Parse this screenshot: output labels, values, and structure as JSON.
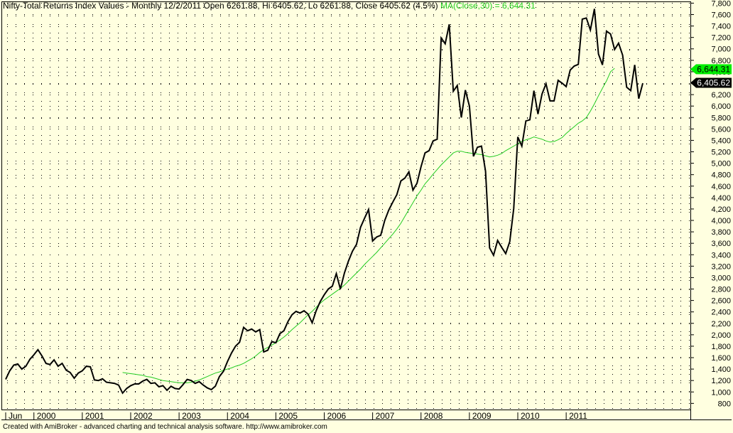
{
  "header": {
    "prefix": "Nifty-Total Returns Index Values - Monthly 12/2/2011 Open 6261.88, Hi 6405.62, Lo 6261.88, Close 6405.62 (4.5%)",
    "ma_text": "MA(Close,30) = 6,644.31"
  },
  "footer": "Created with AmiBroker - advanced charting and technical analysis software. http://www.amibroker.com",
  "colors": {
    "background": "#ffffe0",
    "price_line": "#000000",
    "ma_line": "#22cc22",
    "ma_label_bg": "#00ee00",
    "close_label_bg": "#000000",
    "close_label_text": "#ffffff"
  },
  "chart_data": {
    "type": "line",
    "title": "",
    "xlabel": "",
    "ylabel": "",
    "x_labels": [
      "Jun",
      "2000",
      "2001",
      "2002",
      "2003",
      "2004",
      "2005",
      "2006",
      "2007",
      "2008",
      "2009",
      "2010",
      "2011"
    ],
    "y_ticks": [
      800,
      1000,
      1200,
      1400,
      1600,
      1800,
      2000,
      2200,
      2400,
      2600,
      2800,
      3000,
      3200,
      3400,
      3600,
      3800,
      4000,
      4200,
      4400,
      4600,
      4800,
      5000,
      5200,
      5400,
      5600,
      5800,
      6000,
      6200,
      6400,
      6600,
      6800,
      7000,
      7200,
      7400,
      7600,
      7800
    ],
    "ylim": [
      680,
      7830
    ],
    "grid": "dotted",
    "value_labels": {
      "ma": "6,644.31",
      "close": "6,405.62"
    },
    "series": [
      {
        "role": "price",
        "values": [
          1220,
          1370,
          1470,
          1490,
          1400,
          1450,
          1570,
          1650,
          1740,
          1630,
          1500,
          1480,
          1560,
          1450,
          1500,
          1380,
          1340,
          1240,
          1330,
          1370,
          1450,
          1440,
          1210,
          1200,
          1230,
          1170,
          1160,
          1150,
          1120,
          980,
          1060,
          1110,
          1140,
          1140,
          1190,
          1220,
          1150,
          1160,
          1090,
          1110,
          1030,
          1100,
          1060,
          1050,
          1130,
          1220,
          1200,
          1150,
          1180,
          1120,
          1070,
          1040,
          1100,
          1270,
          1360,
          1530,
          1680,
          1800,
          1870,
          2130,
          2070,
          2100,
          2050,
          2090,
          1700,
          1730,
          1880,
          1860,
          2020,
          2070,
          2230,
          2350,
          2410,
          2380,
          2420,
          2360,
          2210,
          2420,
          2580,
          2700,
          2800,
          2850,
          3070,
          2800,
          3080,
          3290,
          3460,
          3580,
          3880,
          4040,
          4190,
          3640,
          3710,
          3740,
          4000,
          4180,
          4320,
          4450,
          4690,
          4740,
          4850,
          4530,
          4650,
          4940,
          5180,
          5220,
          5390,
          5420,
          7190,
          7090,
          7430,
          6260,
          6360,
          5800,
          6280,
          6000,
          5120,
          5280,
          5300,
          4860,
          3520,
          3390,
          3650,
          3530,
          3420,
          3630,
          4210,
          5460,
          5300,
          5740,
          5760,
          6270,
          5860,
          6210,
          6390,
          6090,
          6090,
          6450,
          6400,
          6340,
          6630,
          6700,
          6730,
          7520,
          7540,
          7330,
          7700,
          6910,
          6720,
          7310,
          7260,
          6990,
          7100,
          6890,
          6330,
          6270,
          6720,
          6130,
          6400
        ]
      },
      {
        "role": "ma",
        "start_index": 29,
        "values": [
          1340,
          1330,
          1320,
          1310,
          1300,
          1290,
          1270,
          1260,
          1240,
          1220,
          1200,
          1190,
          1180,
          1170,
          1160,
          1160,
          1160,
          1170,
          1190,
          1210,
          1240,
          1270,
          1300,
          1330,
          1350,
          1380,
          1400,
          1420,
          1450,
          1470,
          1500,
          1540,
          1580,
          1630,
          1690,
          1740,
          1780,
          1820,
          1860,
          1910,
          1960,
          2020,
          2090,
          2150,
          2210,
          2280,
          2350,
          2410,
          2480,
          2550,
          2610,
          2660,
          2710,
          2760,
          2810,
          2870,
          2940,
          3010,
          3080,
          3150,
          3230,
          3300,
          3370,
          3440,
          3520,
          3600,
          3680,
          3760,
          3850,
          3950,
          4070,
          4190,
          4310,
          4430,
          4530,
          4640,
          4720,
          4810,
          4890,
          4970,
          5040,
          5110,
          5180,
          5210,
          5210,
          5190,
          5180,
          5170,
          5160,
          5150,
          5130,
          5110,
          5120,
          5140,
          5170,
          5220,
          5260,
          5300,
          5340,
          5380,
          5410,
          5430,
          5460,
          5440,
          5420,
          5390,
          5370,
          5380,
          5410,
          5450,
          5520,
          5580,
          5640,
          5700,
          5740,
          5800,
          5910,
          6040,
          6180,
          6310,
          6440,
          6600,
          6660
        ]
      }
    ]
  }
}
